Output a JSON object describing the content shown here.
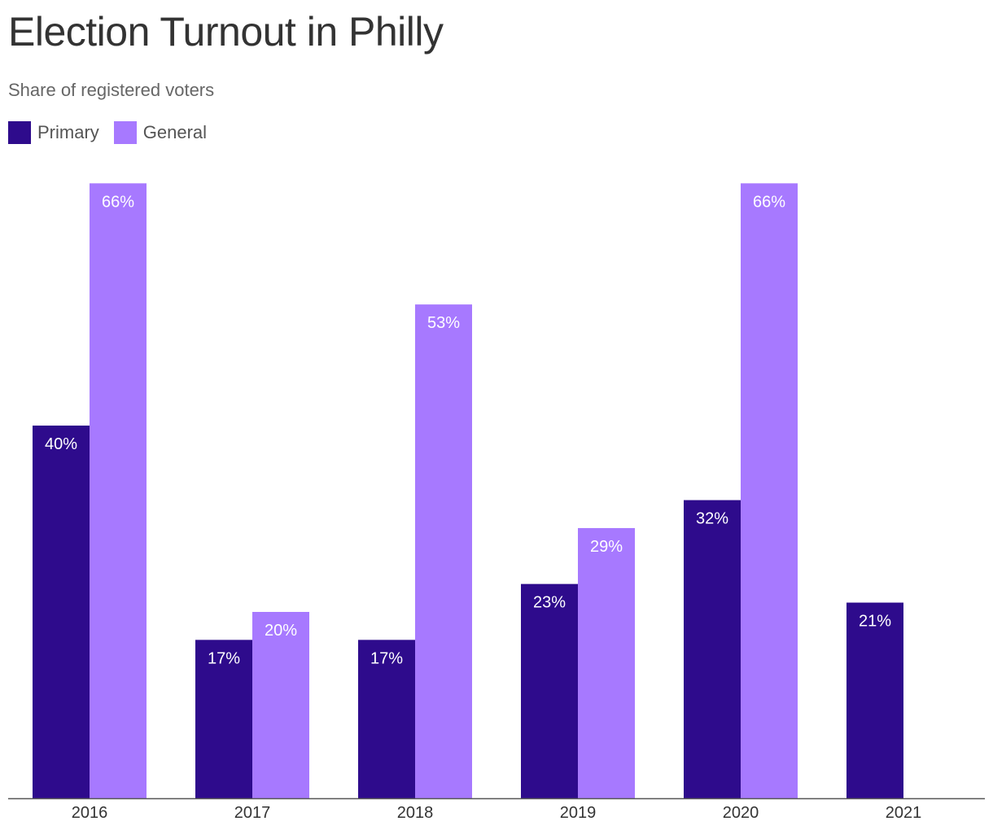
{
  "title": "Election Turnout in Philly",
  "subtitle": "Share of registered voters",
  "colors": {
    "primary": "#2e0b8c",
    "general": "#a779ff",
    "axis": "#555555"
  },
  "legend": {
    "primary_label": "Primary",
    "general_label": "General"
  },
  "chart_data": {
    "type": "bar",
    "title": "Election Turnout in Philly",
    "subtitle": "Share of registered voters",
    "categories": [
      "2016",
      "2017",
      "2018",
      "2019",
      "2020",
      "2021"
    ],
    "series": [
      {
        "name": "Primary",
        "values": [
          40,
          17,
          17,
          23,
          32,
          21
        ],
        "labels": [
          "40%",
          "17%",
          "17%",
          "23%",
          "32%",
          "21%"
        ]
      },
      {
        "name": "General",
        "values": [
          66,
          20,
          53,
          29,
          66,
          null
        ],
        "labels": [
          "66%",
          "20%",
          "53%",
          "29%",
          "66%",
          null
        ]
      }
    ],
    "ylim": [
      0,
      66
    ],
    "y_axis_shown": false,
    "grid": false,
    "legend_position": "top-left",
    "data_labels": "inside-top"
  }
}
